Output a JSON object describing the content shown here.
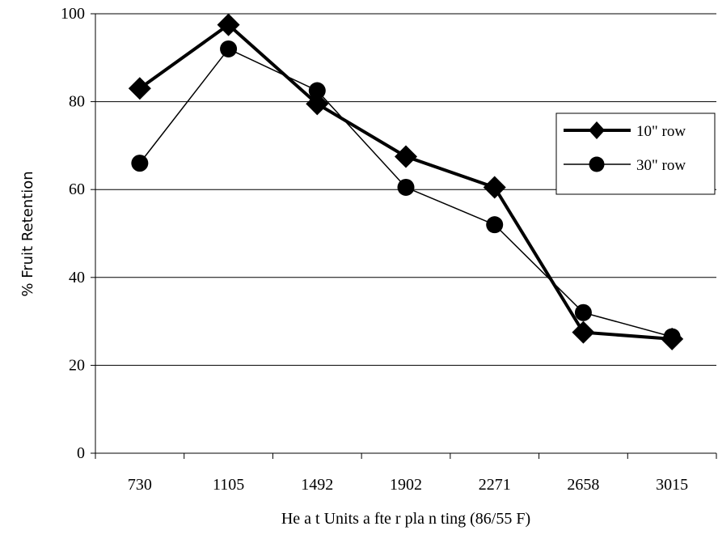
{
  "chart_data": {
    "type": "line",
    "categories": [
      "730",
      "1105",
      "1492",
      "1902",
      "2271",
      "2658",
      "3015"
    ],
    "series": [
      {
        "name": "10\" row",
        "marker": "diamond",
        "values": [
          83,
          97.5,
          79.5,
          67.5,
          60.5,
          27.5,
          26
        ]
      },
      {
        "name": "30\" row",
        "marker": "circle",
        "values": [
          66,
          92,
          82.5,
          60.5,
          52,
          32,
          26.5
        ]
      }
    ],
    "title": "",
    "xlabel": "He a t Units  a fte r pla n ting  (86/55 F)",
    "ylabel": "% Fruit Retention",
    "ylim": [
      0,
      100
    ],
    "yticks": [
      0,
      20,
      40,
      60,
      80,
      100
    ],
    "grid": true,
    "legend": "right",
    "colors": {
      "line": "#000000",
      "grid": "#000000",
      "background": "#ffffff"
    }
  }
}
